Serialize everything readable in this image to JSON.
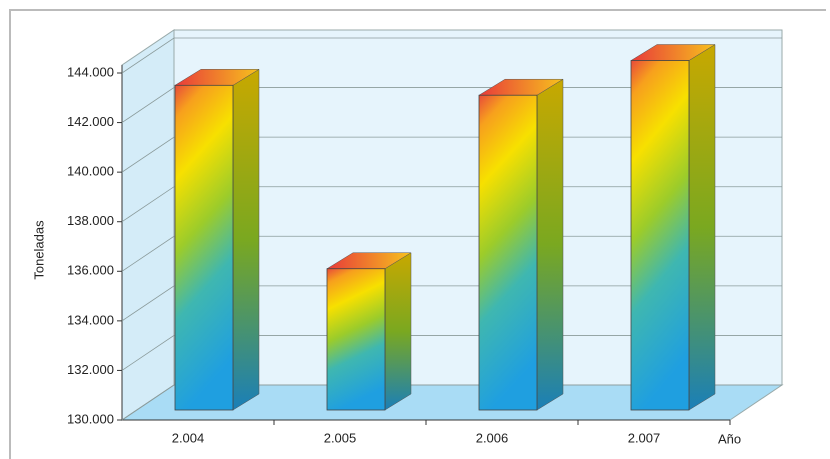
{
  "chart_data": {
    "type": "bar3d",
    "y_label": "Toneladas",
    "x_label": "Año",
    "categories": [
      "2.004",
      "2.005",
      "2.006",
      "2.007"
    ],
    "values": [
      143100,
      135700,
      142700,
      144100
    ],
    "ylim": [
      130000,
      144000
    ],
    "yticks": [
      {
        "value": 130000,
        "label": "130.000"
      },
      {
        "value": 132000,
        "label": "132.000"
      },
      {
        "value": 134000,
        "label": "134.000"
      },
      {
        "value": 136000,
        "label": "136.000"
      },
      {
        "value": 138000,
        "label": "138.000"
      },
      {
        "value": 140000,
        "label": "140.000"
      },
      {
        "value": 142000,
        "label": "142.000"
      },
      {
        "value": 144000,
        "label": "144.000"
      }
    ],
    "grid": true
  }
}
